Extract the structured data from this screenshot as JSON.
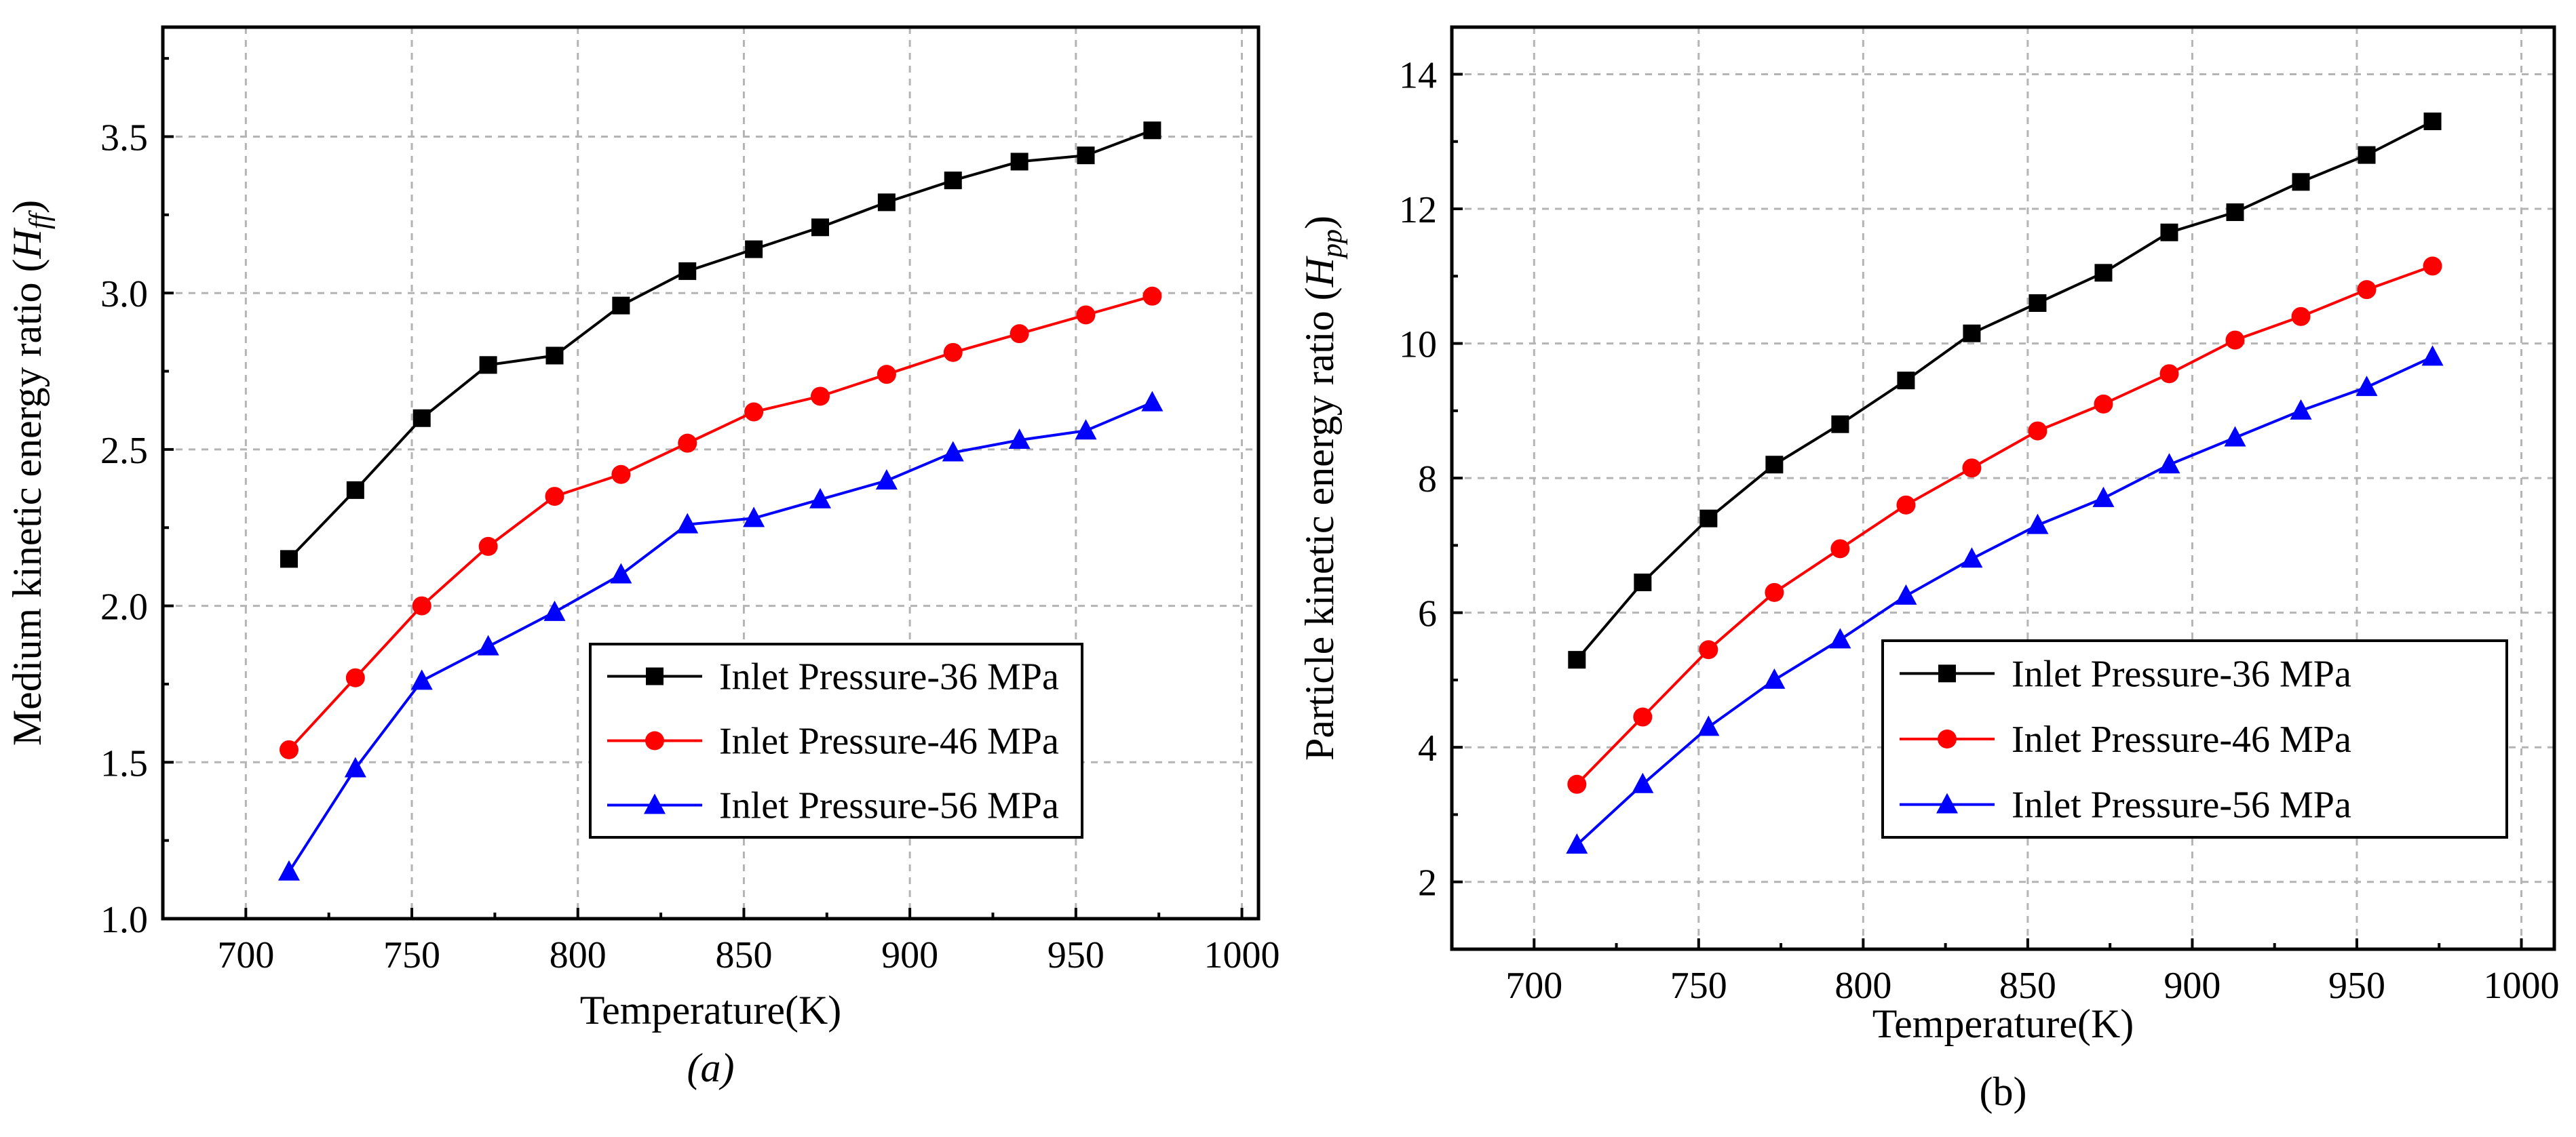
{
  "chart_data": [
    {
      "type": "line",
      "panel": "a",
      "caption": "(a)",
      "xlabel": "Temperature(K)",
      "ylabel": "Medium kinetic energy ratio (",
      "ylabel_symbol": "H",
      "ylabel_subscript": "ff",
      "ylabel_close": ")",
      "xlim": [
        675,
        1005
      ],
      "ylim": [
        1.0,
        3.85
      ],
      "xticks": [
        700,
        750,
        800,
        850,
        900,
        950,
        1000
      ],
      "xtick_labels": [
        "700",
        "750",
        "800",
        "850",
        "900",
        "950",
        "1000"
      ],
      "yticks": [
        1.0,
        1.5,
        2.0,
        2.5,
        3.0,
        3.5
      ],
      "ytick_labels": [
        "1.0",
        "1.5",
        "2.0",
        "2.5",
        "3.0",
        "3.5"
      ],
      "grid": true,
      "legend_position": "bottom-right",
      "x": [
        713,
        733,
        753,
        773,
        793,
        813,
        833,
        853,
        873,
        893,
        913,
        933,
        953,
        973
      ],
      "series": [
        {
          "name": "Inlet Pressure-36 MPa",
          "color": "#000000",
          "marker": "square",
          "values": [
            2.15,
            2.37,
            2.6,
            2.77,
            2.8,
            2.96,
            3.07,
            3.14,
            3.21,
            3.29,
            3.36,
            3.42,
            3.44,
            3.52
          ]
        },
        {
          "name": "Inlet Pressure-46 MPa",
          "color": "#ff0000",
          "marker": "circle",
          "values": [
            1.54,
            1.77,
            2.0,
            2.19,
            2.35,
            2.42,
            2.52,
            2.62,
            2.67,
            2.74,
            2.81,
            2.87,
            2.93,
            2.99
          ]
        },
        {
          "name": "Inlet Pressure-56 MPa",
          "color": "#0000ff",
          "marker": "triangle",
          "values": [
            1.15,
            1.48,
            1.76,
            1.87,
            1.98,
            2.1,
            2.26,
            2.28,
            2.34,
            2.4,
            2.49,
            2.53,
            2.56,
            2.65
          ]
        }
      ]
    },
    {
      "type": "line",
      "panel": "b",
      "caption": "(b)",
      "xlabel": "Temperature(K)",
      "ylabel": "Particle kinetic energy ratio (",
      "ylabel_symbol": "H",
      "ylabel_subscript": "pp",
      "ylabel_close": ")",
      "xlim": [
        675,
        1010
      ],
      "ylim": [
        1.0,
        14.7
      ],
      "xticks": [
        700,
        750,
        800,
        850,
        900,
        950,
        1000
      ],
      "xtick_labels": [
        "700",
        "750",
        "800",
        "850",
        "900",
        "950",
        "1000"
      ],
      "yticks": [
        2,
        4,
        6,
        8,
        10,
        12,
        14
      ],
      "ytick_labels": [
        "2",
        "4",
        "6",
        "8",
        "10",
        "12",
        "14"
      ],
      "grid": true,
      "legend_position": "bottom-right",
      "x": [
        713,
        733,
        753,
        773,
        793,
        813,
        833,
        853,
        873,
        893,
        913,
        933,
        953,
        973
      ],
      "series": [
        {
          "name": "Inlet Pressure-36 MPa",
          "color": "#000000",
          "marker": "square",
          "values": [
            5.3,
            6.45,
            7.4,
            8.2,
            8.8,
            9.45,
            10.15,
            10.6,
            11.05,
            11.65,
            11.95,
            12.4,
            12.8,
            13.3
          ]
        },
        {
          "name": "Inlet Pressure-46 MPa",
          "color": "#ff0000",
          "marker": "circle",
          "values": [
            3.45,
            4.45,
            5.45,
            6.3,
            6.95,
            7.6,
            8.15,
            8.7,
            9.1,
            9.55,
            10.05,
            10.4,
            10.8,
            11.15
          ]
        },
        {
          "name": "Inlet Pressure-56 MPa",
          "color": "#0000ff",
          "marker": "triangle",
          "values": [
            2.55,
            3.45,
            4.3,
            5.0,
            5.6,
            6.25,
            6.8,
            7.3,
            7.7,
            8.2,
            8.6,
            9.0,
            9.35,
            9.8
          ]
        }
      ]
    }
  ]
}
